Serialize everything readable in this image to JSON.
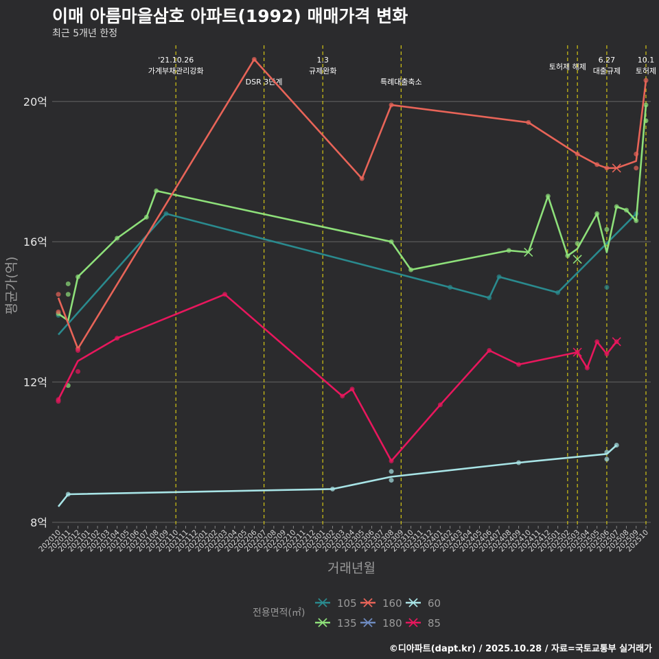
{
  "header": {
    "title": "이매 아름마을삼호 아파트(1992) 매매가격 변화",
    "subtitle": "최근 5개년 한정",
    "caption": "©디아파트(dapt.kr) / 2025.10.28 / 자료=국토교통부 실거래가"
  },
  "colors": {
    "background": "#2b2b2d",
    "grid": "#5a5a5a",
    "vline": "#d4c614",
    "s105": "#2a8a8e",
    "s135": "#8ee07a",
    "s160": "#e86458",
    "s180": "#6e8bc0",
    "s60": "#a8e4e6",
    "s85": "#e8175d"
  },
  "chart_data": {
    "type": "line",
    "title": "이매 아름마을삼호 아파트(1992) 매매가격 변화",
    "subtitle": "최근 5개년 한정",
    "xlabel": "거래년월",
    "ylabel": "평균가(억)",
    "ylim": [
      7.9,
      21.6
    ],
    "yticks": [
      8,
      12,
      16,
      20
    ],
    "ytick_labels": [
      "8억",
      "12억",
      "16억",
      "20억"
    ],
    "months": [
      "202010",
      "202011",
      "202012",
      "202101",
      "202102",
      "202103",
      "202104",
      "202105",
      "202106",
      "202107",
      "202108",
      "202109",
      "202110",
      "202111",
      "202112",
      "202201",
      "202202",
      "202203",
      "202204",
      "202205",
      "202206",
      "202207",
      "202208",
      "202209",
      "202210",
      "202211",
      "202212",
      "202301",
      "202302",
      "202303",
      "202304",
      "202305",
      "202306",
      "202307",
      "202308",
      "202309",
      "202310",
      "202311",
      "202312",
      "202401",
      "202402",
      "202403",
      "202404",
      "202405",
      "202406",
      "202407",
      "202408",
      "202409",
      "202410",
      "202411",
      "202412",
      "202501",
      "202502",
      "202503",
      "202504",
      "202505",
      "202506",
      "202507",
      "202508",
      "202509",
      "202510"
    ],
    "events": [
      {
        "month": "202110",
        "label": "'21.10.26\n가계부채관리강화",
        "level": 1
      },
      {
        "month": "202207",
        "label": "DSR 3단계",
        "level": 2
      },
      {
        "month": "202301",
        "label": "1.3\n규제완화",
        "level": 1
      },
      {
        "month": "202309",
        "label": "특례대출축소",
        "level": 2
      },
      {
        "month": "202502",
        "label": "토허제 해제",
        "level": 0
      },
      {
        "month": "202503",
        "label": "",
        "level": 0
      },
      {
        "month": "202506",
        "label": "6.27\n대출규제",
        "level": 1
      },
      {
        "month": "202510",
        "label": "10.1\n토허제",
        "level": 1
      }
    ],
    "legend_title": "전용면적(㎡)",
    "legend": [
      {
        "name": "105",
        "key": "s105"
      },
      {
        "name": "160",
        "key": "s160"
      },
      {
        "name": "60",
        "key": "s60"
      },
      {
        "name": "135",
        "key": "s135"
      },
      {
        "name": "180",
        "key": "s180"
      },
      {
        "name": "85",
        "key": "s85"
      }
    ],
    "series": [
      {
        "name": "105",
        "key": "s105",
        "line": [
          [
            "202010",
            13.35
          ],
          [
            "202109",
            16.8
          ],
          [
            "202402",
            14.7
          ],
          [
            "202406",
            14.4
          ],
          [
            "202407",
            15.0
          ],
          [
            "202501",
            14.55
          ],
          [
            "202509",
            16.8
          ]
        ],
        "points": [
          [
            "202010",
            13.9
          ],
          [
            "202109",
            16.8
          ],
          [
            "202402",
            14.7
          ],
          [
            "202406",
            14.4
          ],
          [
            "202407",
            15.0
          ],
          [
            "202501",
            14.55
          ],
          [
            "202506",
            14.7
          ],
          [
            "202509",
            16.8
          ]
        ],
        "crosses": []
      },
      {
        "name": "135",
        "key": "s135",
        "line": [
          [
            "202010",
            13.95
          ],
          [
            "202011",
            13.75
          ],
          [
            "202012",
            15.0
          ],
          [
            "202104",
            16.1
          ],
          [
            "202107",
            16.7
          ],
          [
            "202108",
            17.45
          ],
          [
            "202308",
            16.0
          ],
          [
            "202310",
            15.2
          ],
          [
            "202408",
            15.75
          ],
          [
            "202410",
            15.7
          ],
          [
            "202412",
            17.3
          ],
          [
            "202502",
            15.6
          ],
          [
            "202503",
            15.8
          ],
          [
            "202505",
            16.8
          ],
          [
            "202506",
            15.7
          ],
          [
            "202507",
            17.0
          ],
          [
            "202508",
            16.9
          ],
          [
            "202509",
            16.6
          ],
          [
            "202510",
            19.9
          ]
        ],
        "points": [
          [
            "202010",
            13.95
          ],
          [
            "202011",
            14.8
          ],
          [
            "202011",
            14.5
          ],
          [
            "202011",
            11.9
          ],
          [
            "202012",
            15.0
          ],
          [
            "202104",
            16.1
          ],
          [
            "202107",
            16.7
          ],
          [
            "202108",
            17.45
          ],
          [
            "202308",
            16.0
          ],
          [
            "202310",
            15.2
          ],
          [
            "202408",
            15.75
          ],
          [
            "202412",
            17.3
          ],
          [
            "202502",
            15.6
          ],
          [
            "202503",
            15.95
          ],
          [
            "202505",
            16.8
          ],
          [
            "202506",
            16.35
          ],
          [
            "202507",
            17.0
          ],
          [
            "202508",
            16.9
          ],
          [
            "202509",
            16.6
          ],
          [
            "202510",
            19.9
          ],
          [
            "202510",
            19.45
          ]
        ],
        "crosses": [
          [
            "202410",
            15.7
          ],
          [
            "202503",
            15.5
          ]
        ]
      },
      {
        "name": "160",
        "key": "s160",
        "line": [
          [
            "202010",
            14.4
          ],
          [
            "202012",
            12.95
          ],
          [
            "202206",
            21.2
          ],
          [
            "202305",
            17.8
          ],
          [
            "202308",
            19.9
          ],
          [
            "202410",
            19.4
          ],
          [
            "202503",
            18.5
          ],
          [
            "202505",
            18.2
          ],
          [
            "202506",
            18.1
          ],
          [
            "202507",
            18.1
          ],
          [
            "202509",
            18.3
          ],
          [
            "202510",
            20.6
          ]
        ],
        "points": [
          [
            "202010",
            14.5
          ],
          [
            "202010",
            14.0
          ],
          [
            "202012",
            12.95
          ],
          [
            "202206",
            21.2
          ],
          [
            "202305",
            17.8
          ],
          [
            "202308",
            19.9
          ],
          [
            "202410",
            19.4
          ],
          [
            "202503",
            18.5
          ],
          [
            "202505",
            18.2
          ],
          [
            "202506",
            18.1
          ],
          [
            "202509",
            18.5
          ],
          [
            "202509",
            18.1
          ],
          [
            "202510",
            20.6
          ]
        ],
        "crosses": [
          [
            "202507",
            18.1
          ]
        ]
      },
      {
        "name": "180",
        "key": "s180",
        "line": [],
        "points": [],
        "crosses": []
      },
      {
        "name": "60",
        "key": "s60",
        "line": [
          [
            "202010",
            8.45
          ],
          [
            "202011",
            8.8
          ],
          [
            "202302",
            8.95
          ],
          [
            "202308",
            9.3
          ],
          [
            "202409",
            9.7
          ],
          [
            "202506",
            9.95
          ],
          [
            "202507",
            10.2
          ]
        ],
        "points": [
          [
            "202011",
            8.8
          ],
          [
            "202302",
            8.95
          ],
          [
            "202308",
            9.45
          ],
          [
            "202308",
            9.2
          ],
          [
            "202409",
            9.7
          ],
          [
            "202506",
            10.0
          ],
          [
            "202506",
            9.8
          ],
          [
            "202507",
            10.2
          ]
        ],
        "crosses": []
      },
      {
        "name": "85",
        "key": "s85",
        "line": [
          [
            "202010",
            11.5
          ],
          [
            "202012",
            12.6
          ],
          [
            "202104",
            13.25
          ],
          [
            "202203",
            14.5
          ],
          [
            "202303",
            11.6
          ],
          [
            "202304",
            11.8
          ],
          [
            "202308",
            9.75
          ],
          [
            "202401",
            11.35
          ],
          [
            "202406",
            12.9
          ],
          [
            "202409",
            12.5
          ],
          [
            "202503",
            12.85
          ],
          [
            "202504",
            12.4
          ],
          [
            "202505",
            13.15
          ],
          [
            "202506",
            12.8
          ],
          [
            "202507",
            13.15
          ]
        ],
        "points": [
          [
            "202010",
            11.5
          ],
          [
            "202010",
            11.45
          ],
          [
            "202012",
            12.9
          ],
          [
            "202012",
            12.3
          ],
          [
            "202104",
            13.25
          ],
          [
            "202203",
            14.5
          ],
          [
            "202303",
            11.6
          ],
          [
            "202304",
            11.8
          ],
          [
            "202308",
            9.75
          ],
          [
            "202401",
            11.35
          ],
          [
            "202406",
            12.9
          ],
          [
            "202409",
            12.5
          ],
          [
            "202503",
            12.85
          ],
          [
            "202504",
            12.4
          ],
          [
            "202505",
            13.15
          ],
          [
            "202506",
            12.8
          ],
          [
            "202507",
            13.15
          ]
        ],
        "crosses": [
          [
            "202503",
            12.85
          ],
          [
            "202507",
            13.15
          ]
        ]
      }
    ]
  }
}
